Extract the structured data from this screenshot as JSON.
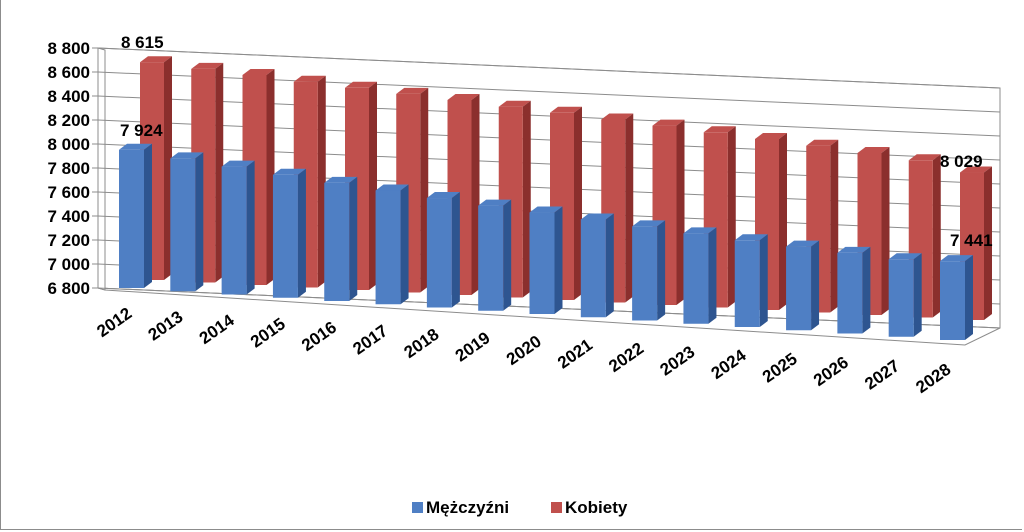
{
  "chart_data": {
    "type": "bar",
    "categories": [
      "2012",
      "2013",
      "2014",
      "2015",
      "2016",
      "2017",
      "2018",
      "2019",
      "2020",
      "2021",
      "2022",
      "2023",
      "2024",
      "2025",
      "2026",
      "2027",
      "2028"
    ],
    "series": [
      {
        "name": "Mężczyźni",
        "color": "#4F7FC4",
        "values": [
          7924,
          7880,
          7840,
          7800,
          7760,
          7725,
          7690,
          7655,
          7625,
          7595,
          7565,
          7535,
          7505,
          7480,
          7455,
          7430,
          7441
        ]
      },
      {
        "name": "Kobiety",
        "color": "#C0504D",
        "values": [
          8615,
          8580,
          8550,
          8515,
          8485,
          8455,
          8425,
          8390,
          8360,
          8325,
          8295,
          8260,
          8225,
          8190,
          8150,
          8110,
          8029
        ]
      }
    ],
    "data_labels": [
      {
        "series": 0,
        "index": 0,
        "text": "7 924"
      },
      {
        "series": 1,
        "index": 0,
        "text": "8 615"
      },
      {
        "series": 0,
        "index": 16,
        "text": "7 441"
      },
      {
        "series": 1,
        "index": 16,
        "text": "8 029"
      }
    ],
    "yticks": [
      6800,
      7000,
      7200,
      7400,
      7600,
      7800,
      8000,
      8200,
      8400,
      8600,
      8800
    ],
    "ytick_labels": [
      "6 800",
      "7 000",
      "7 200",
      "7 400",
      "7 600",
      "7 800",
      "8 000",
      "8 200",
      "8 400",
      "8 600",
      "8 800"
    ],
    "ylim": [
      6800,
      8800
    ],
    "grid": true,
    "legend_position": "bottom",
    "view": "3d-perspective"
  }
}
